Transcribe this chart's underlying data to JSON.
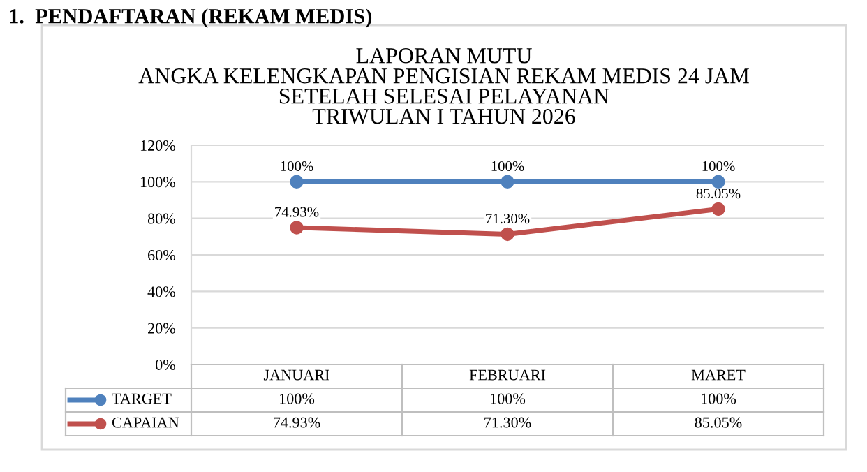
{
  "chart_data": {
    "type": "line",
    "title": "LAPORAN MUTU\nANGKA KELENGKAPAN PENGISIAN REKAM MEDIS 24 JAM\nSETELAH SELESAI PELAYANAN\nTRIWULAN I TAHUN 2026",
    "annotations": [
      "1.  PENDAFTARAN (REKAM MEDIS)"
    ],
    "categories": [
      "JANUARI",
      "FEBRUARI",
      "MARET"
    ],
    "series": [
      {
        "name": "TARGET",
        "color": "#4f81bd",
        "values": [
          100,
          100,
          100
        ],
        "value_labels": [
          "100%",
          "100%",
          "100%"
        ]
      },
      {
        "name": "CAPAIAN",
        "color": "#c0504d",
        "values": [
          74.93,
          71.3,
          85.05
        ],
        "value_labels": [
          "74.93%",
          "71.30%",
          "85.05%"
        ]
      }
    ],
    "ylim": [
      0,
      120
    ],
    "yticks": [
      {
        "value": 0,
        "label": "0%"
      },
      {
        "value": 20,
        "label": "20%"
      },
      {
        "value": 40,
        "label": "40%"
      },
      {
        "value": 60,
        "label": "60%"
      },
      {
        "value": 80,
        "label": "80%"
      },
      {
        "value": 100,
        "label": "100%"
      },
      {
        "value": 120,
        "label": "120%"
      }
    ],
    "grid": "y",
    "legend": "bottom left",
    "marker": "circle",
    "line_style": "solid"
  }
}
